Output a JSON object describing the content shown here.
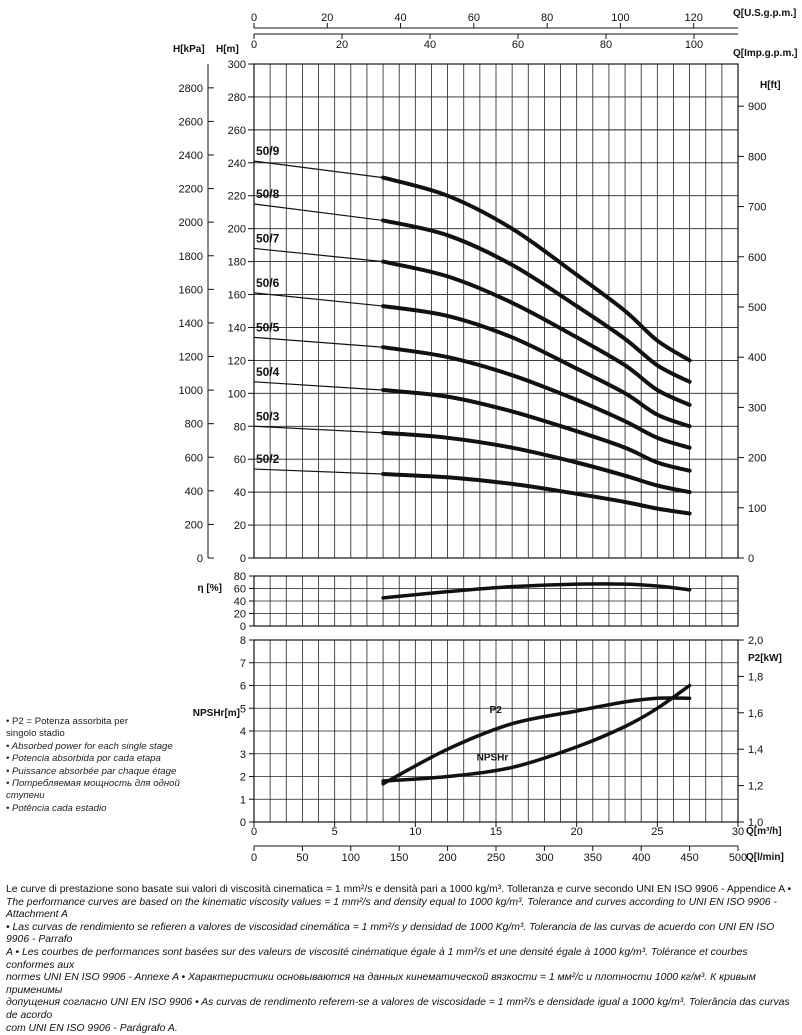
{
  "axis_labels": {
    "top_usgpm": "Q[U.S.g.p.m.]",
    "top_impgpm": "Q[Imp.g.p.m.]",
    "kpa": "H[kPa]",
    "m": "H[m]",
    "ft": "H[ft]",
    "eta": "η [%]",
    "npshr": "NPSHr[m]",
    "p2": "P2[kW]",
    "m3h": "Q[m³/h]",
    "lmin": "Q[l/min]"
  },
  "chart_data": [
    {
      "type": "line",
      "title": "",
      "xlabel": "Q[m³/h]",
      "ylabel": "H[m]",
      "xlim": [
        0,
        30
      ],
      "ylim": [
        0,
        300
      ],
      "secondary_axes": {
        "top_usgpm": {
          "range": [
            0,
            132.1
          ],
          "ticks": [
            "0",
            "20",
            "40",
            "60",
            "80",
            "100",
            "120"
          ],
          "values": [
            0,
            20,
            40,
            60,
            80,
            100,
            120
          ]
        },
        "top_impgpm": {
          "range": [
            0,
            110
          ],
          "ticks": [
            "0",
            "20",
            "40",
            "60",
            "80",
            "100"
          ],
          "values": [
            0,
            20,
            40,
            60,
            80,
            100
          ]
        },
        "left_kpa": {
          "range": [
            0,
            2942
          ],
          "ticks": [
            "0",
            "200",
            "400",
            "600",
            "800",
            "1000",
            "1200",
            "1400",
            "1600",
            "1800",
            "2000",
            "2200",
            "2400",
            "2600",
            "2800"
          ],
          "values": [
            0,
            200,
            400,
            600,
            800,
            1000,
            1200,
            1400,
            1600,
            1800,
            2000,
            2200,
            2400,
            2600,
            2800
          ]
        },
        "right_ft": {
          "range": [
            0,
            984
          ],
          "ticks": [
            "0",
            "100",
            "200",
            "300",
            "400",
            "500",
            "600",
            "700",
            "800",
            "900"
          ],
          "values": [
            0,
            100,
            200,
            300,
            400,
            500,
            600,
            700,
            800,
            900
          ]
        }
      },
      "yticks": [
        "0",
        "20",
        "40",
        "60",
        "80",
        "100",
        "120",
        "140",
        "160",
        "180",
        "200",
        "220",
        "240",
        "260",
        "280",
        "300"
      ],
      "grid": true,
      "series": [
        {
          "name": "50/9",
          "x": [
            0,
            8,
            12,
            16,
            20,
            23,
            25,
            27
          ],
          "y": [
            241,
            231,
            220,
            200,
            172,
            150,
            132,
            120
          ]
        },
        {
          "name": "50/8",
          "x": [
            0,
            8,
            12,
            16,
            20,
            23,
            25,
            27
          ],
          "y": [
            215,
            205,
            196,
            178,
            153,
            133,
            117,
            107
          ]
        },
        {
          "name": "50/7",
          "x": [
            0,
            8,
            12,
            16,
            20,
            23,
            25,
            27
          ],
          "y": [
            188,
            180,
            171,
            155,
            134,
            117,
            102,
            93
          ]
        },
        {
          "name": "50/6",
          "x": [
            0,
            8,
            12,
            16,
            20,
            23,
            25,
            27
          ],
          "y": [
            161,
            153,
            147,
            134,
            115,
            100,
            87,
            80
          ]
        },
        {
          "name": "50/5",
          "x": [
            0,
            8,
            12,
            16,
            20,
            23,
            25,
            27
          ],
          "y": [
            134,
            128,
            122,
            111,
            96,
            83,
            73,
            67
          ]
        },
        {
          "name": "50/4",
          "x": [
            0,
            8,
            12,
            16,
            20,
            23,
            25,
            27
          ],
          "y": [
            107,
            102,
            98,
            89,
            77,
            67,
            58,
            53
          ]
        },
        {
          "name": "50/3",
          "x": [
            0,
            8,
            12,
            16,
            20,
            23,
            25,
            27
          ],
          "y": [
            80,
            76,
            73,
            67,
            58,
            50,
            44,
            40
          ]
        },
        {
          "name": "50/2",
          "x": [
            0,
            8,
            12,
            16,
            20,
            23,
            25,
            27
          ],
          "y": [
            54,
            51,
            49,
            45,
            39,
            34,
            30,
            27
          ]
        }
      ]
    },
    {
      "type": "line",
      "title": "",
      "xlabel": "Q[m³/h]",
      "ylabel": "η [%]",
      "xlim": [
        0,
        30
      ],
      "ylim": [
        0,
        80
      ],
      "yticks": [
        "0",
        "20",
        "40",
        "60",
        "80"
      ],
      "grid": true,
      "series": [
        {
          "name": "",
          "x": [
            8,
            12,
            16,
            20,
            23,
            25,
            27
          ],
          "y": [
            45,
            55,
            63,
            67,
            67,
            64,
            58
          ]
        }
      ]
    },
    {
      "type": "line",
      "title": "",
      "xlabel": "Q[m³/h]",
      "ylabel": "NPSHr[m]",
      "xlim": [
        0,
        30
      ],
      "ylim": [
        0,
        8
      ],
      "yticks": [
        "0",
        "1",
        "2",
        "3",
        "4",
        "5",
        "6",
        "7",
        "8"
      ],
      "p2_axis": {
        "range": [
          1.0,
          2.0
        ],
        "ticks": [
          "1,0",
          "1,2",
          "1,4",
          "1,6",
          "1,8",
          "2,0"
        ],
        "values": [
          1.0,
          1.2,
          1.4,
          1.6,
          1.8,
          2.0
        ]
      },
      "bottom_m3h_ticks": {
        "ticks": [
          "0",
          "5",
          "10",
          "15",
          "20",
          "25",
          "30"
        ],
        "values": [
          0,
          5,
          10,
          15,
          20,
          25,
          30
        ]
      },
      "bottom_lmin_ticks": {
        "ticks": [
          "0",
          "50",
          "100",
          "150",
          "200",
          "250",
          "300",
          "350",
          "400",
          "450",
          "500"
        ],
        "values": [
          0,
          50,
          100,
          150,
          200,
          250,
          300,
          350,
          400,
          450,
          500
        ]
      },
      "grid": true,
      "series": [
        {
          "name": "NPSHr",
          "x": [
            8,
            12,
            16,
            20,
            23,
            25,
            27
          ],
          "y": [
            1.8,
            2.0,
            2.4,
            3.3,
            4.2,
            5.0,
            6.0
          ]
        },
        {
          "name": "P2",
          "x": [
            8,
            12,
            16,
            20,
            23,
            25,
            27
          ],
          "p2": [
            1.21,
            1.4,
            1.54,
            1.61,
            1.66,
            1.68,
            1.68
          ]
        }
      ]
    }
  ],
  "legend": [
    "• P2 = Potenza assorbita per\n   singolo stadio",
    "• Absorbed power for each single stage",
    "• Potencia absorbida por cada etapa",
    "• Puissance absorbée par chaque étage",
    "• Потребляемая мощность для одной ступени",
    "• Potência  cada estadio"
  ],
  "footnote": {
    "line1": "Le curve di prestazione sono basate sui valori di viscosità cinematica = 1 mm²/s e densità pari a 1000 kg/m³. Tolleranza e curve secondo UNI EN ISO 9906 - Appendice A •",
    "line2": "The performance curves are based on the kinematic viscosity values = 1 mm²/s and density equal to 1000 kg/m³. Tolerance and curves according to UNI EN ISO 9906 - Attachment A",
    "line3": "• Las curvas de rendimiento se refieren a valores de viscosidad cinemática = 1 mm²/s y densidad de 1000 Kg/m³. Tolerancia de las curvas de acuerdo con UNI EN ISO 9906 - Parrafo",
    "line4": "A • Les courbes de performances sont basées sur des valeurs de viscosité cinématique égale à 1 mm²/s et une densité égale à 1000 kg/m³. Tolérance et courbes conformes aux",
    "line5": "normes UNI EN ISO 9906 - Annexe A • Характеристики основываются на данных кинематической вязкости = 1 мм²/с и плотности 1000 кг/м³. К кривым применимы",
    "line6": "допущения согласно UNI EN ISO 9906 • As curvas de rendimento referem-se a valores de viscosidade = 1 mm²/s e densidade igual a 1000 kg/m³. Tolerância das curvas de acordo",
    "line7": "com UNI EN ISO 9906 - Parágrafo A."
  }
}
